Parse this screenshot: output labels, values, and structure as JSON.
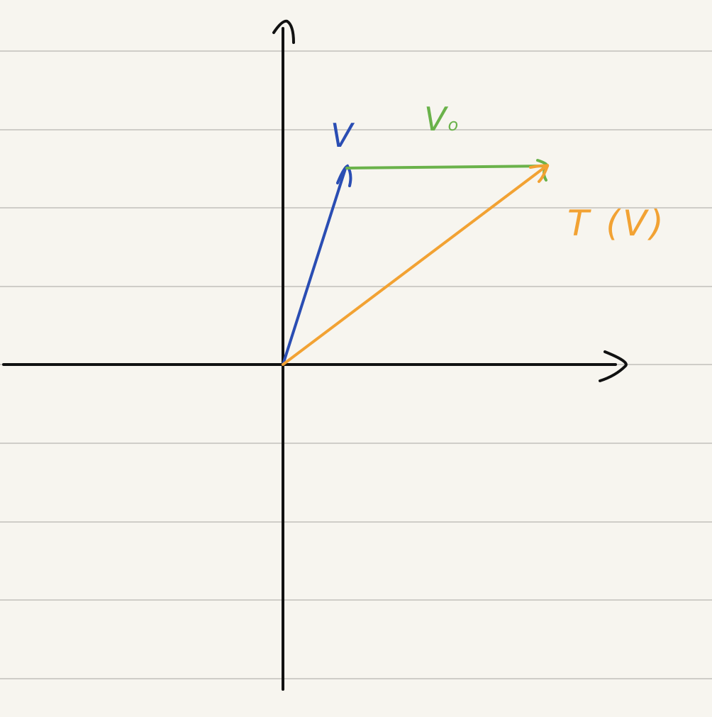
{
  "paper": {
    "background": "#f7f5ef",
    "rule_color": "#cfcdc8",
    "rule_count": 9
  },
  "axes": {
    "color": "#111111"
  },
  "vectors": [
    {
      "id": "v",
      "label": "V",
      "color": "#2a4db3",
      "from": [
        0,
        0
      ],
      "to": [
        1,
        3.3
      ]
    },
    {
      "id": "v0",
      "label": "V",
      "label_sub": "o",
      "color": "#6ab24a",
      "from": [
        1,
        3.3
      ],
      "to": [
        4.4,
        3.3
      ]
    },
    {
      "id": "tv",
      "label": "T (V)",
      "color": "#f2a233",
      "from": [
        0,
        0
      ],
      "to": [
        4.4,
        3.3
      ]
    }
  ]
}
